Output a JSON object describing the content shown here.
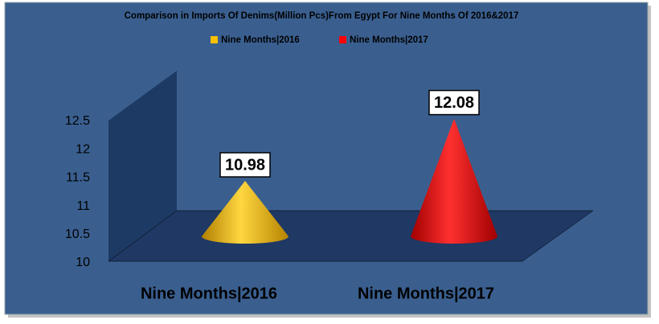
{
  "chart_data": {
    "type": "cone",
    "title": "Comparison in Imports Of Denims(Million Pcs)From Egypt For Nine Months Of 2016&2017",
    "categories": [
      "Nine Months|2016",
      "Nine Months|2017"
    ],
    "values": [
      10.98,
      12.08
    ],
    "colors": [
      "#ffc000",
      "#ff0000"
    ],
    "ylim": [
      10,
      12.5
    ],
    "yticks": [
      10,
      10.5,
      11,
      11.5,
      12,
      12.5
    ],
    "grid": false
  }
}
